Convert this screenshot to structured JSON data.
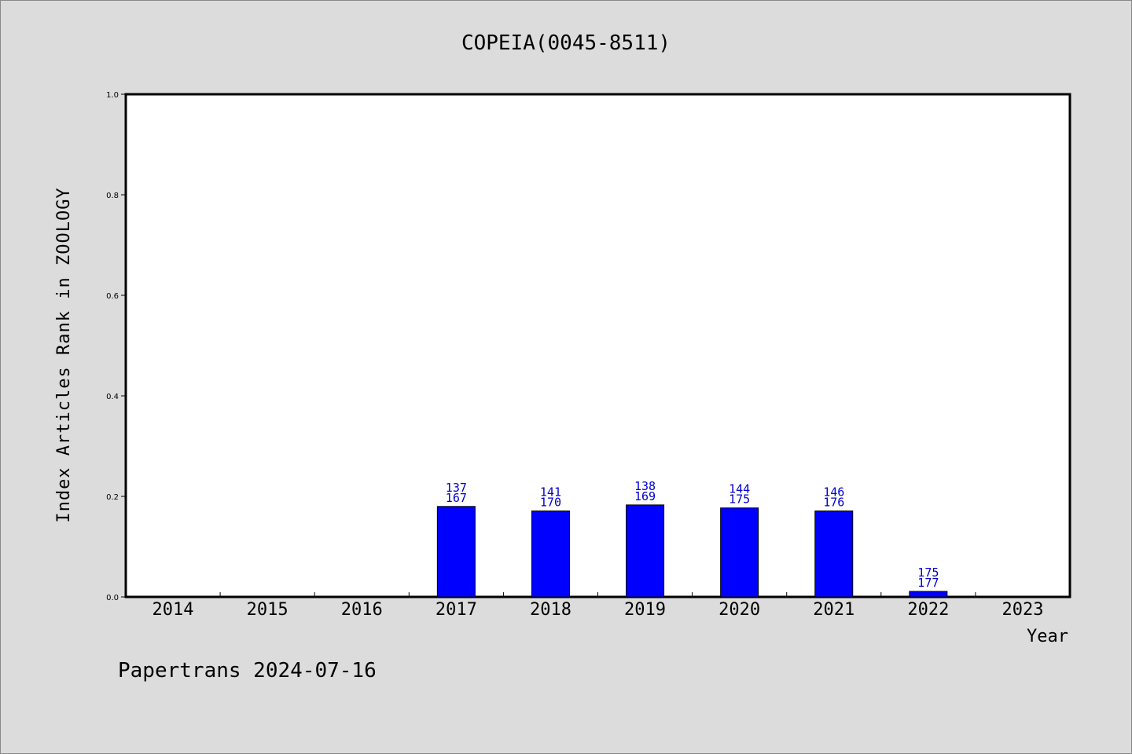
{
  "chart_data": {
    "type": "bar",
    "title": "COPEIA(0045-8511)",
    "xlabel": "Year",
    "ylabel": "Index Articles Rank in ZOOLOGY",
    "ylim": [
      0,
      1.0
    ],
    "yticks": [
      "0.0",
      "0.2",
      "0.4",
      "0.6",
      "0.8",
      "1.0"
    ],
    "categories": [
      "2014",
      "2015",
      "2016",
      "2017",
      "2018",
      "2019",
      "2020",
      "2021",
      "2022",
      "2023"
    ],
    "values": [
      null,
      null,
      null,
      0.18,
      0.171,
      0.183,
      0.177,
      0.171,
      0.011,
      null
    ],
    "labels_top": [
      "",
      "",
      "",
      "137",
      "141",
      "138",
      "144",
      "146",
      "175",
      ""
    ],
    "labels_bottom": [
      "",
      "",
      "",
      "167",
      "170",
      "169",
      "175",
      "176",
      "177",
      ""
    ],
    "bar_color": "#0000ff",
    "label_color": "#0000cc",
    "grid": false,
    "legend": "none"
  },
  "footer": "Papertrans 2024-07-16"
}
